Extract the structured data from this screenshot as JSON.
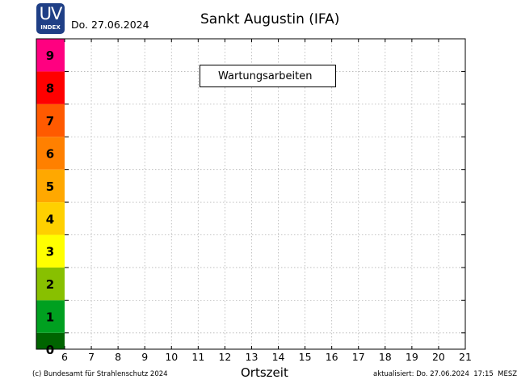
{
  "logo": {
    "text": "UV",
    "subtext": "INDEX"
  },
  "header": {
    "date": "Do. 27.06.2024",
    "title": "Sankt Augustin (IFA)"
  },
  "footer": {
    "credit": "(c) Bundesamt für Strahlenschutz 2024",
    "updated": "aktualisiert: Do. 27.06.2024  17:15  MESZ"
  },
  "chart_data": {
    "type": "line",
    "title": "Sankt Augustin (IFA)",
    "xlabel": "Ortszeit",
    "ylabel": "",
    "x_ticks": [
      6,
      7,
      8,
      9,
      10,
      11,
      12,
      13,
      14,
      15,
      16,
      17,
      18,
      19,
      20,
      21
    ],
    "xlim": [
      6,
      21
    ],
    "ylim": [
      0,
      9.5
    ],
    "grid": true,
    "series": [],
    "uv_scale": [
      {
        "level": "0",
        "color": "#006400"
      },
      {
        "level": "1",
        "color": "#00a020"
      },
      {
        "level": "2",
        "color": "#88c000"
      },
      {
        "level": "3",
        "color": "#ffff00"
      },
      {
        "level": "4",
        "color": "#ffd000"
      },
      {
        "level": "5",
        "color": "#ffa800"
      },
      {
        "level": "6",
        "color": "#ff8000"
      },
      {
        "level": "7",
        "color": "#ff5a00"
      },
      {
        "level": "8",
        "color": "#ff0000"
      },
      {
        "level": "9",
        "color": "#ff0080"
      }
    ],
    "annotation": "Wartungsarbeiten"
  }
}
